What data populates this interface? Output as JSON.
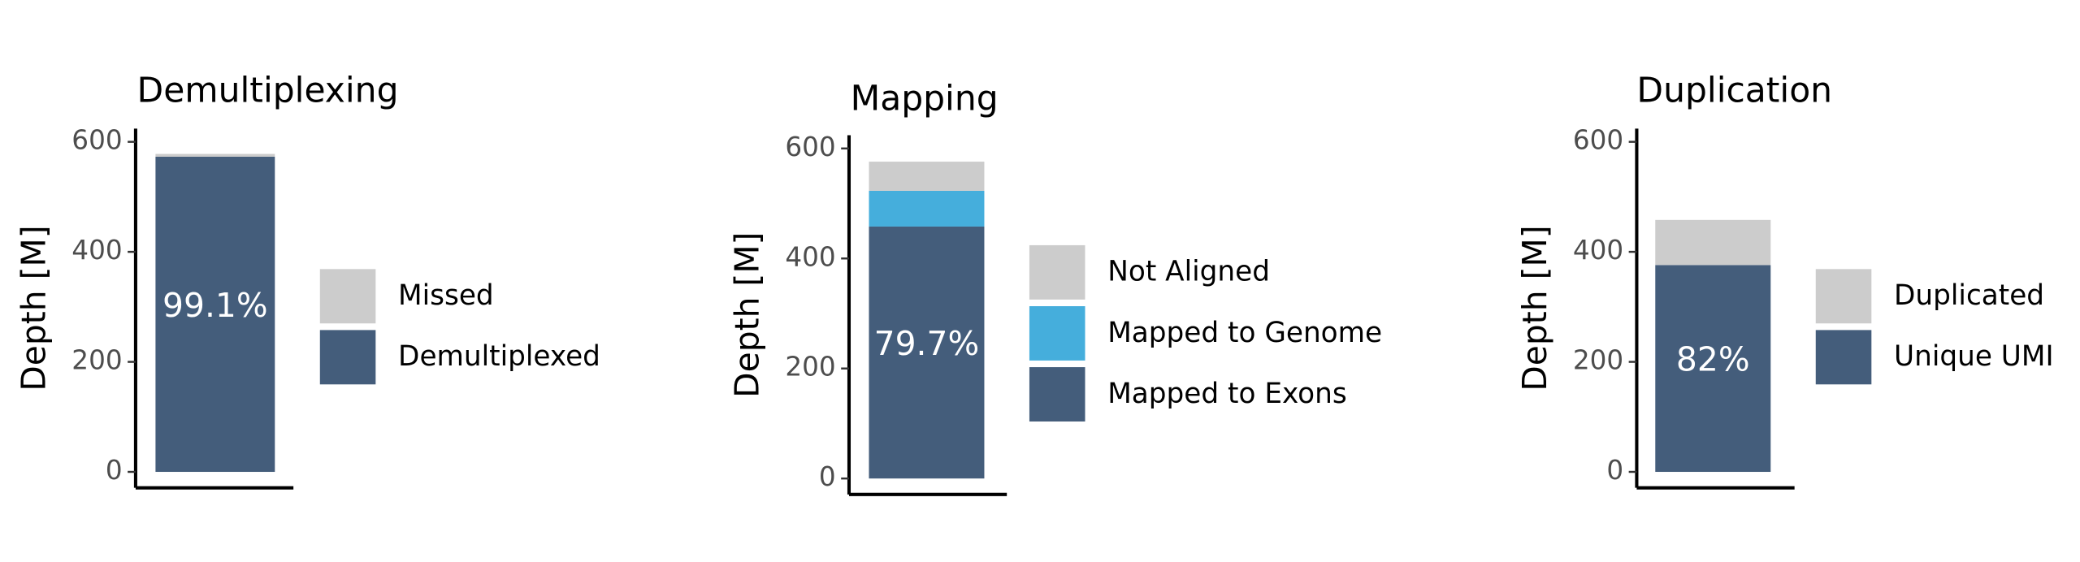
{
  "chart_data": [
    {
      "type": "bar",
      "stacked": true,
      "title": "Demultiplexing",
      "y_label": "Depth [M]",
      "ylim": [
        -29,
        624
      ],
      "yticks": [
        0,
        200,
        400,
        600
      ],
      "annotation": "99.1%",
      "series": [
        {
          "name": "Demultiplexed",
          "color": "#445d7b",
          "values": [
            573
          ]
        },
        {
          "name": "Missed",
          "color": "#cccccc",
          "values": [
            5
          ]
        }
      ]
    },
    {
      "type": "bar",
      "stacked": true,
      "title": "Mapping",
      "y_label": "Depth [M]",
      "ylim": [
        -29,
        624
      ],
      "yticks": [
        0,
        200,
        400,
        600
      ],
      "annotation": "79.7%",
      "series": [
        {
          "name": "Mapped to Exons",
          "color": "#445d7b",
          "values": [
            458
          ]
        },
        {
          "name": "Mapped to Genome",
          "color": "#45aedc",
          "values": [
            65
          ]
        },
        {
          "name": "Not Aligned",
          "color": "#cccccc",
          "values": [
            53
          ]
        }
      ]
    },
    {
      "type": "bar",
      "stacked": true,
      "title": "Duplication",
      "y_label": "Depth [M]",
      "ylim": [
        -29,
        624
      ],
      "yticks": [
        0,
        200,
        400,
        600
      ],
      "annotation": "82%",
      "series": [
        {
          "name": "Unique UMI",
          "color": "#445d7b",
          "values": [
            376
          ]
        },
        {
          "name": "Duplicated",
          "color": "#cccccc",
          "values": [
            82
          ]
        }
      ]
    }
  ]
}
